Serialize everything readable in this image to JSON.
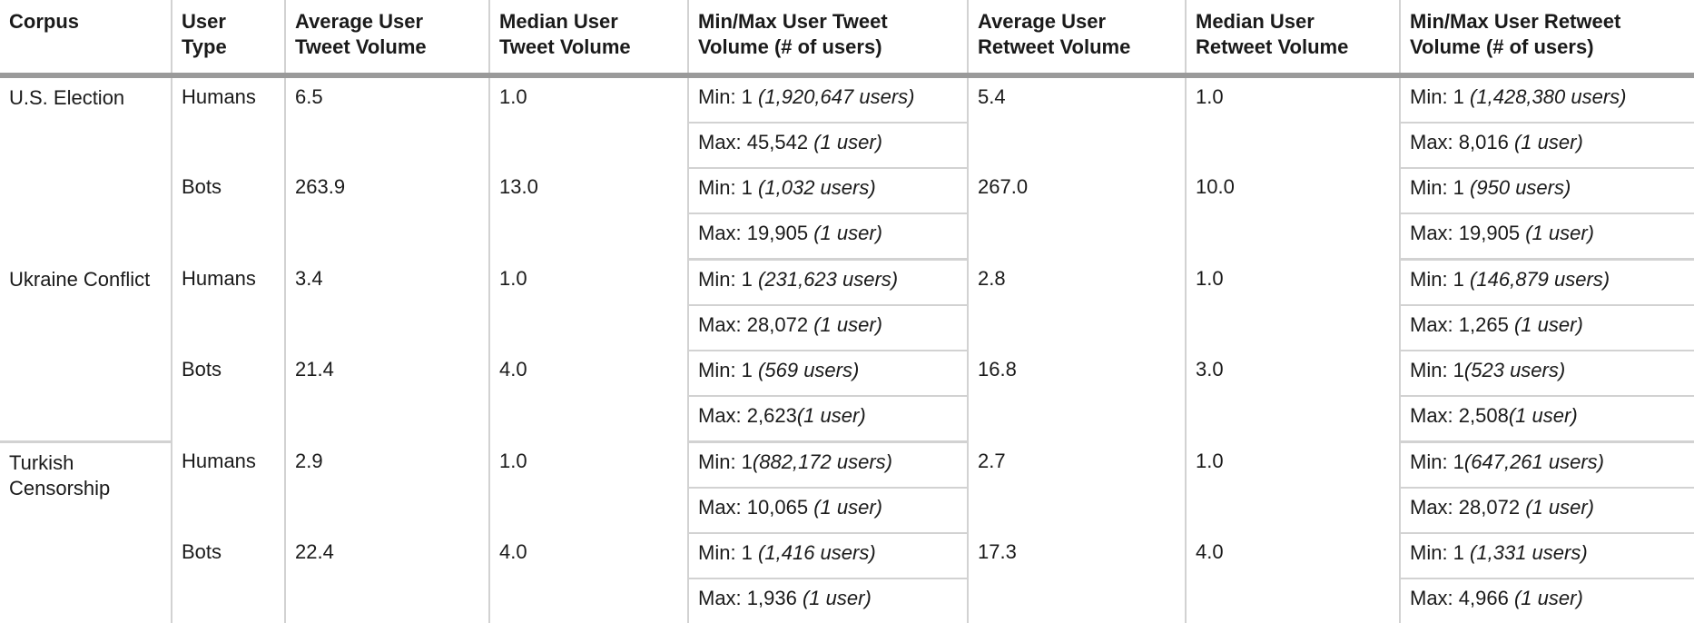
{
  "headers": [
    "Corpus",
    "User Type",
    "Average User Tweet Volume",
    "Median User Tweet Volume",
    "Min/Max User Tweet Volume (# of users)",
    "Average User Retweet Volume",
    "Median User Retweet Volume",
    "Min/Max User Retweet Volume (# of users)"
  ],
  "corpora": [
    {
      "name": "U.S. Election",
      "rows": [
        {
          "type": "Humans",
          "avg_tweet": "6.5",
          "median_tweet": "1.0",
          "tweet_min": {
            "label": "Min: 1",
            "users": "(1,920,647 users)"
          },
          "tweet_max": {
            "label": "Max: 45,542",
            "users": "(1 user)"
          },
          "avg_retweet": "5.4",
          "median_retweet": "1.0",
          "retweet_min": {
            "label": "Min: 1",
            "users": "(1,428,380 users)"
          },
          "retweet_max": {
            "label": "Max: 8,016",
            "users": "(1 user)"
          }
        },
        {
          "type": "Bots",
          "avg_tweet": "263.9",
          "median_tweet": "13.0",
          "tweet_min": {
            "label": "Min: 1",
            "users": "(1,032 users)"
          },
          "tweet_max": {
            "label": "Max: 19,905",
            "users": "(1 user)"
          },
          "avg_retweet": "267.0",
          "median_retweet": "10.0",
          "retweet_min": {
            "label": "Min: 1",
            "users": "(950 users)"
          },
          "retweet_max": {
            "label": "Max: 19,905",
            "users": "(1 user)"
          }
        }
      ]
    },
    {
      "name": "Ukraine Conflict",
      "rows": [
        {
          "type": "Humans",
          "avg_tweet": "3.4",
          "median_tweet": "1.0",
          "tweet_min": {
            "label": "Min: 1",
            "users": "(231,623 users)"
          },
          "tweet_max": {
            "label": "Max: 28,072",
            "users": "(1 user)"
          },
          "avg_retweet": "2.8",
          "median_retweet": "1.0",
          "retweet_min": {
            "label": "Min: 1",
            "users": "(146,879 users)"
          },
          "retweet_max": {
            "label": "Max: 1,265",
            "users": "(1 user)"
          }
        },
        {
          "type": "Bots",
          "avg_tweet": "21.4",
          "median_tweet": "4.0",
          "tweet_min": {
            "label": "Min: 1",
            "users": "(569 users)"
          },
          "tweet_max": {
            "label": "Max: 2,623",
            "users": "(1 user)"
          },
          "avg_retweet": "16.8",
          "median_retweet": "3.0",
          "retweet_min": {
            "label": "Min: 1",
            "users": "(523 users)"
          },
          "retweet_max": {
            "label": "Max: 2,508",
            "users": "(1 user)"
          }
        }
      ]
    },
    {
      "name": "Turkish Censorship",
      "rows": [
        {
          "type": "Humans",
          "avg_tweet": "2.9",
          "median_tweet": "1.0",
          "tweet_min": {
            "label": "Min: 1",
            "users": "(882,172 users)"
          },
          "tweet_max": {
            "label": "Max: 10,065",
            "users": "(1 user)"
          },
          "avg_retweet": "2.7",
          "median_retweet": "1.0",
          "retweet_min": {
            "label": "Min: 1",
            "users": "(647,261 users)"
          },
          "retweet_max": {
            "label": "Max: 28,072",
            "users": "(1 user)"
          }
        },
        {
          "type": "Bots",
          "avg_tweet": "22.4",
          "median_tweet": "4.0",
          "tweet_min": {
            "label": "Min: 1",
            "users": "(1,416 users)"
          },
          "tweet_max": {
            "label": "Max: 1,936",
            "users": "(1 user)"
          },
          "avg_retweet": "17.3",
          "median_retweet": "4.0",
          "retweet_min": {
            "label": "Min: 1",
            "users": "(1,331 users)"
          },
          "retweet_max": {
            "label": "Max: 4,966",
            "users": "(1 user)"
          }
        }
      ]
    }
  ]
}
